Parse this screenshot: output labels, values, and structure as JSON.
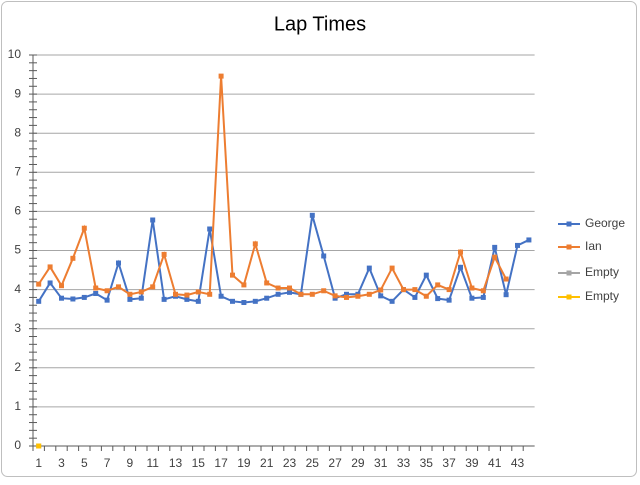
{
  "chart_data": {
    "type": "line",
    "title": "Lap Times",
    "categories": [
      1,
      null,
      3,
      null,
      5,
      null,
      7,
      null,
      9,
      null,
      11,
      null,
      13,
      null,
      15,
      null,
      17,
      null,
      19,
      null,
      21,
      null,
      23,
      null,
      25,
      null,
      27,
      null,
      29,
      null,
      31,
      null,
      33,
      null,
      35,
      null,
      37,
      null,
      39,
      null,
      41,
      null,
      43,
      null
    ],
    "series": [
      {
        "name": "George",
        "color": "#4472c4",
        "values": [
          3.7,
          4.17,
          3.78,
          3.76,
          3.8,
          3.9,
          3.73,
          4.68,
          3.75,
          3.78,
          5.78,
          3.75,
          3.83,
          3.75,
          3.7,
          5.55,
          3.83,
          3.7,
          3.67,
          3.7,
          3.78,
          3.88,
          3.93,
          3.88,
          5.9,
          4.86,
          3.78,
          3.88,
          3.88,
          4.55,
          3.84,
          3.7,
          4.0,
          3.8,
          4.37,
          3.77,
          3.73,
          4.57,
          3.78,
          3.8,
          5.08,
          3.87,
          5.13,
          5.27
        ]
      },
      {
        "name": "Ian",
        "color": "#ed7d31",
        "values": [
          4.14,
          4.58,
          4.1,
          4.8,
          5.57,
          4.04,
          3.97,
          4.07,
          3.88,
          3.94,
          4.07,
          4.9,
          3.88,
          3.86,
          3.94,
          3.88,
          9.46,
          4.37,
          4.12,
          5.17,
          4.17,
          4.04,
          4.04,
          3.88,
          3.88,
          3.97,
          3.84,
          3.8,
          3.83,
          3.88,
          3.99,
          4.55,
          4.0,
          4.0,
          3.83,
          4.12,
          4.0,
          4.96,
          4.04,
          3.97,
          4.83,
          4.27,
          null,
          null
        ]
      },
      {
        "name": "Empty",
        "color": "#a5a5a5",
        "values": [
          0,
          null,
          null,
          null,
          null,
          null,
          null,
          null,
          null,
          null,
          null,
          null,
          null,
          null,
          null,
          null,
          null,
          null,
          null,
          null,
          null,
          null,
          null,
          null,
          null,
          null,
          null,
          null,
          null,
          null,
          null,
          null,
          null,
          null,
          null,
          null,
          null,
          null,
          null,
          null,
          null,
          null,
          null,
          null
        ]
      },
      {
        "name": "Empty",
        "color": "#ffc000",
        "values": [
          0,
          null,
          null,
          null,
          null,
          null,
          null,
          null,
          null,
          null,
          null,
          null,
          null,
          null,
          null,
          null,
          null,
          null,
          null,
          null,
          null,
          null,
          null,
          null,
          null,
          null,
          null,
          null,
          null,
          null,
          null,
          null,
          null,
          null,
          null,
          null,
          null,
          null,
          null,
          null,
          null,
          null,
          null,
          null
        ]
      }
    ],
    "ylim": [
      0,
      10
    ],
    "yticks": [
      0,
      1,
      2,
      3,
      4,
      5,
      6,
      7,
      8,
      9,
      10
    ],
    "grid": true,
    "legend": "right"
  }
}
